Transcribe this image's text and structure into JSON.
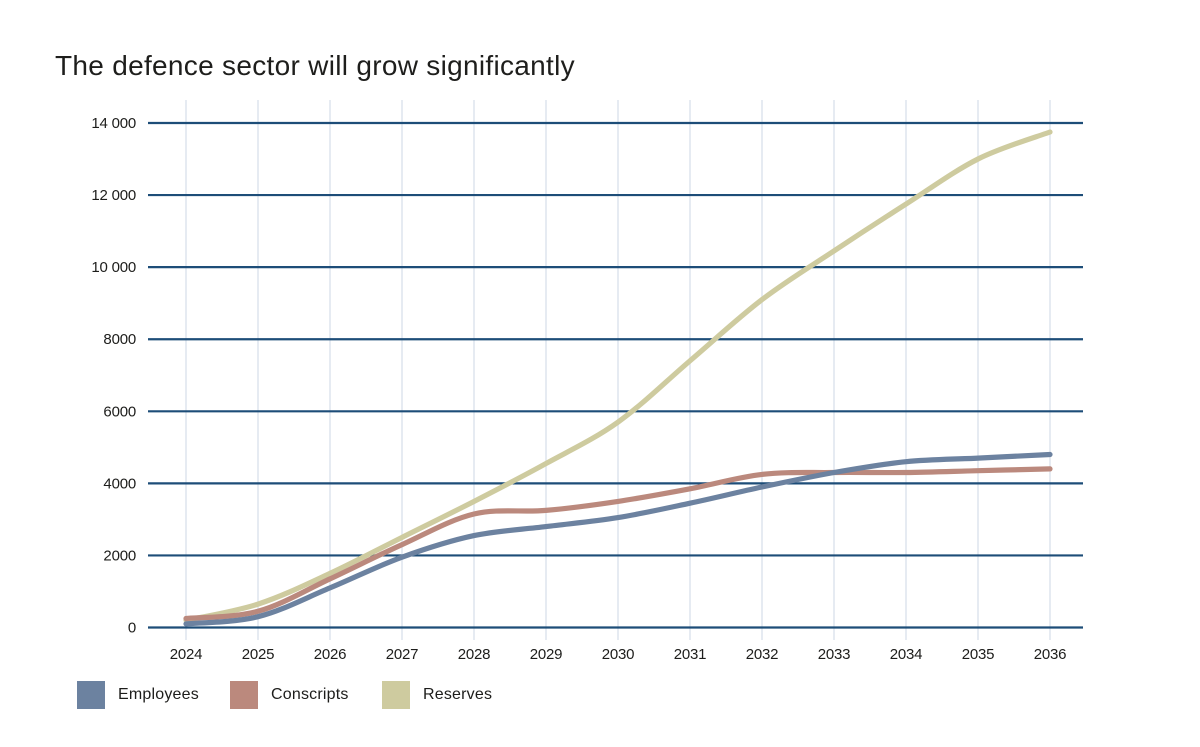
{
  "title": "The defence sector will grow significantly",
  "legend": {
    "position": "bottom-left",
    "items": [
      {
        "label": "Employees",
        "color": "#6c82a0"
      },
      {
        "label": "Conscripts",
        "color": "#bb897d"
      },
      {
        "label": "Reserves",
        "color": "#cecb9f"
      }
    ]
  },
  "chart_data": {
    "type": "line",
    "title": "The defence sector will grow significantly",
    "x": [
      2024,
      2025,
      2026,
      2027,
      2028,
      2029,
      2030,
      2031,
      2032,
      2033,
      2034,
      2035,
      2036
    ],
    "series": [
      {
        "name": "Employees",
        "color": "#6c82a0",
        "values": [
          100,
          300,
          1100,
          1950,
          2550,
          2800,
          3050,
          3450,
          3900,
          4300,
          4600,
          4700,
          4800
        ]
      },
      {
        "name": "Conscripts",
        "color": "#bb897d",
        "values": [
          250,
          450,
          1350,
          2300,
          3150,
          3250,
          3500,
          3850,
          4250,
          4300,
          4300,
          4350,
          4400
        ]
      },
      {
        "name": "Reserves",
        "color": "#cecb9f",
        "values": [
          200,
          650,
          1500,
          2500,
          3500,
          4550,
          5700,
          7400,
          9100,
          10450,
          11750,
          13000,
          13750
        ]
      }
    ],
    "xlabel": "",
    "ylabel": "",
    "ylim": [
      0,
      14000
    ],
    "y_ticks": [
      0,
      2000,
      4000,
      6000,
      8000,
      10000,
      12000,
      14000
    ],
    "y_tick_labels": [
      "0",
      "2000",
      "4000",
      "6000",
      "8000",
      "10 000",
      "12 000",
      "14 000"
    ],
    "grid": {
      "horizontal": true,
      "vertical": true
    },
    "legend_position": "bottom-left",
    "colors": {
      "grid_horizontal": "#1d4d78",
      "grid_vertical": "#e0e6ee",
      "tick_text": "#1d1d1b"
    }
  }
}
